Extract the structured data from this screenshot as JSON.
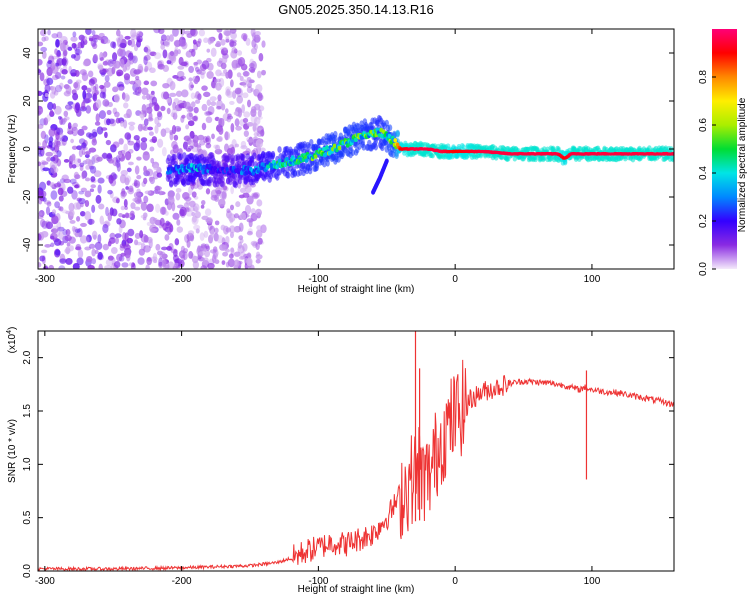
{
  "title": "GN05.2025.350.14.13.R16",
  "chart_data": [
    {
      "type": "heatmap",
      "name": "spectrogram",
      "xlabel": "Height of straight line (km)",
      "ylabel": "Frequency (Hz)",
      "xlim": [
        -305,
        160
      ],
      "ylim": [
        -50,
        50
      ],
      "xticks": [
        -300,
        -200,
        -100,
        0,
        100
      ],
      "yticks": [
        -40,
        -20,
        0,
        20,
        40
      ],
      "colorbar": {
        "label": "Normalized spectral amplitude",
        "range": [
          0.0,
          1.0
        ],
        "ticks": [
          0.0,
          0.2,
          0.4,
          0.6,
          0.8
        ],
        "colors": [
          "#e8d8f4",
          "#8a2be2",
          "#3300ff",
          "#0066ff",
          "#00e5e5",
          "#00dd33",
          "#aaee00",
          "#ffee00",
          "#ff8800",
          "#ff0000",
          "#ff0077"
        ]
      },
      "features": {
        "noise_region_x": [
          -305,
          -140
        ],
        "ridge": {
          "x": [
            -210,
            -190,
            -170,
            -150,
            -130,
            -110,
            -90,
            -70,
            -55,
            -45,
            -40,
            -30,
            -20,
            -10,
            0,
            20,
            40,
            60,
            75,
            80,
            85,
            100,
            120,
            140,
            160
          ],
          "freq": [
            -9,
            -8,
            -9,
            -9,
            -6,
            -4,
            0,
            5,
            7,
            3,
            0,
            0,
            0,
            -1,
            -1,
            -1,
            -2,
            -2,
            -2,
            -4,
            -2,
            -2,
            -2,
            -2,
            -2
          ],
          "amplitude": [
            0.25,
            0.35,
            0.2,
            0.3,
            0.4,
            0.45,
            0.5,
            0.5,
            0.45,
            0.55,
            0.9,
            0.95,
            0.95,
            0.95,
            0.9,
            0.95,
            0.95,
            0.95,
            0.95,
            0.9,
            0.95,
            0.95,
            0.95,
            0.95,
            0.95
          ]
        },
        "branch": {
          "x": [
            -60,
            -55,
            -50
          ],
          "freq": [
            -18,
            -12,
            -5
          ]
        }
      }
    },
    {
      "type": "line",
      "name": "snr",
      "xlabel": "Height of straight line (km)",
      "ylabel": "SNR (10 * v/v)",
      "yscale_label": "(x10",
      "yscale_exp": "4",
      "xlim": [
        -305,
        160
      ],
      "ylim": [
        0.0,
        2.25
      ],
      "xticks": [
        -300,
        -200,
        -100,
        0,
        100
      ],
      "yticks": [
        0.0,
        0.5,
        1.0,
        1.5,
        2.0
      ],
      "color": "#ee3333",
      "x": [
        -305,
        -250,
        -200,
        -150,
        -130,
        -120,
        -110,
        -100,
        -90,
        -80,
        -70,
        -60,
        -50,
        -45,
        -40,
        -35,
        -30,
        -27,
        -25,
        -20,
        -15,
        -10,
        -5,
        0,
        10,
        20,
        30,
        40,
        50,
        60,
        70,
        80,
        90,
        95,
        100,
        110,
        120,
        130,
        140,
        150,
        160
      ],
      "y": [
        0.02,
        0.02,
        0.03,
        0.05,
        0.08,
        0.12,
        0.18,
        0.22,
        0.27,
        0.25,
        0.3,
        0.35,
        0.5,
        0.6,
        0.72,
        0.8,
        0.9,
        1.0,
        0.9,
        0.85,
        1.05,
        1.25,
        1.35,
        1.45,
        1.6,
        1.68,
        1.72,
        1.76,
        1.78,
        1.77,
        1.76,
        1.74,
        1.7,
        1.72,
        1.7,
        1.68,
        1.67,
        1.64,
        1.62,
        1.59,
        1.56
      ],
      "spikes": [
        {
          "x": -29,
          "y": 2.25
        },
        {
          "x": -26,
          "y": 1.9
        },
        {
          "x": 96,
          "y": 1.88
        }
      ]
    }
  ]
}
